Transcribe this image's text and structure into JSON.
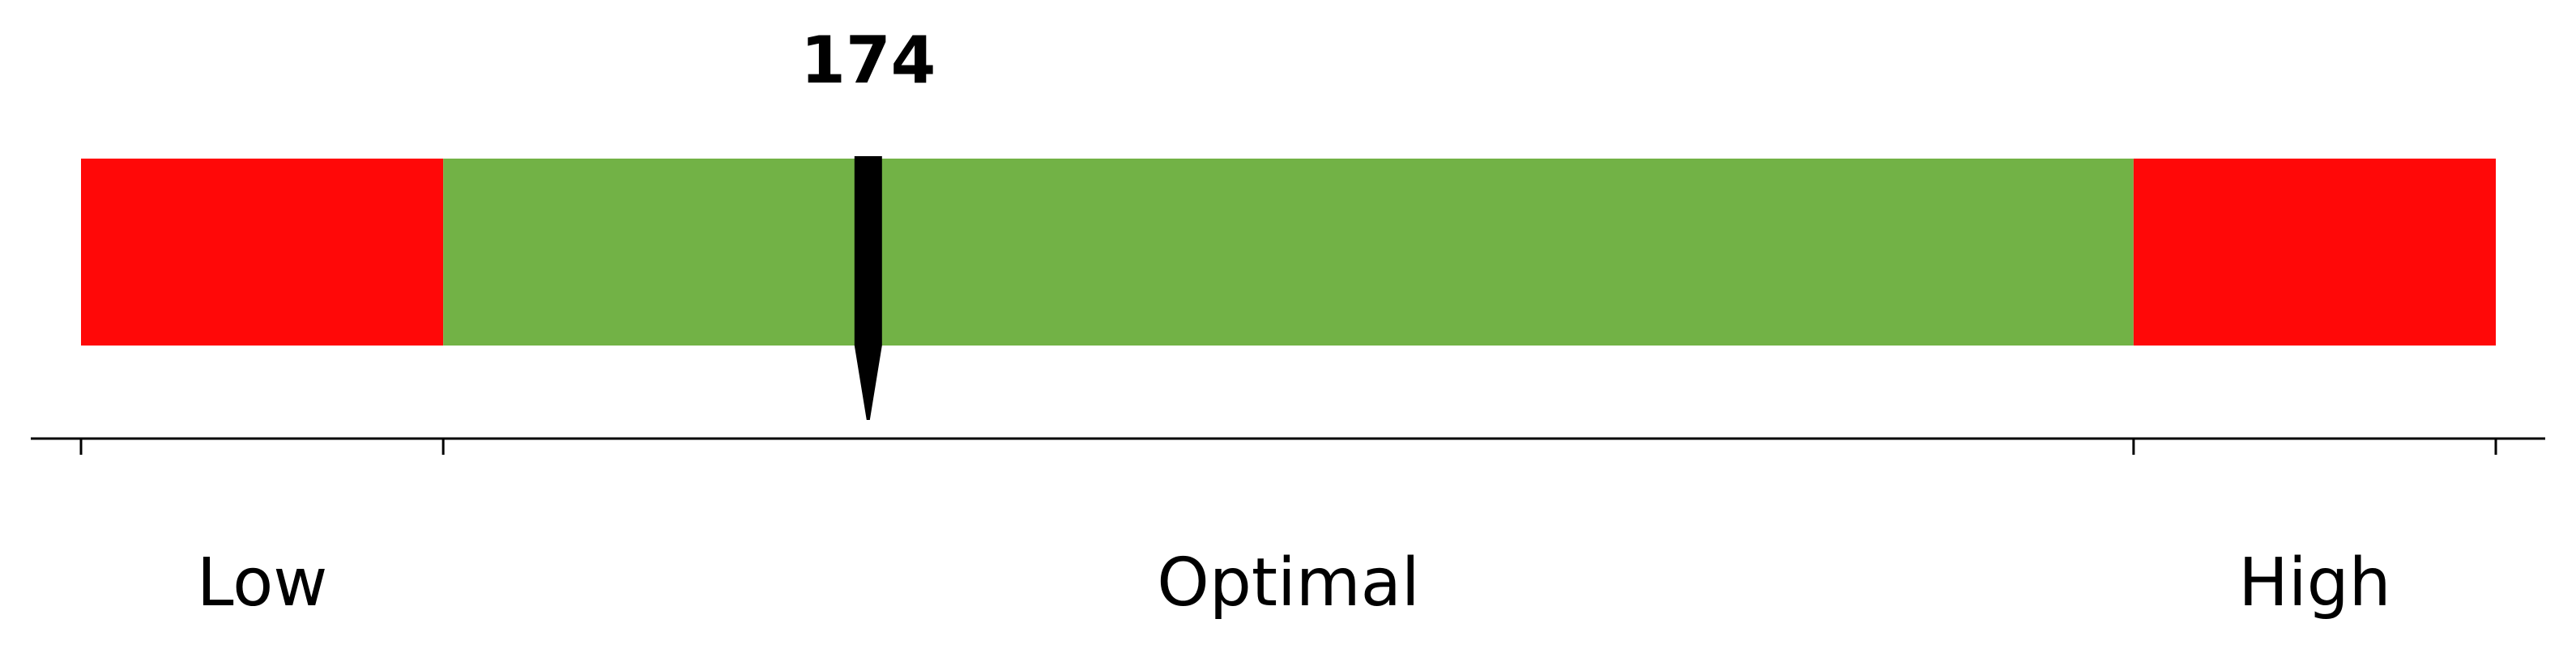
{
  "chart_data": {
    "type": "bar",
    "title": "",
    "value": 174,
    "value_label": "174",
    "zones": [
      {
        "name": "Low",
        "from": 0,
        "to": 15,
        "color": "#ff0808"
      },
      {
        "name": "Optimal",
        "from": 15,
        "to": 85,
        "color": "#72b246"
      },
      {
        "name": "High",
        "from": 85,
        "to": 100,
        "color": "#ff0808"
      }
    ],
    "value_position_fraction": 0.326,
    "marker_color": "#000000",
    "axis_color": "#000000"
  }
}
